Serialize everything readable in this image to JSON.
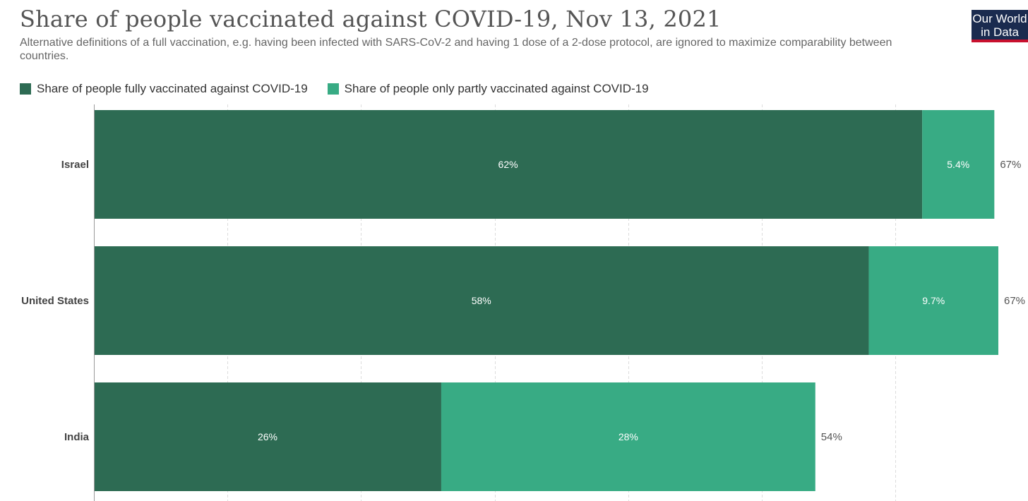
{
  "header": {
    "title": "Share of people vaccinated against COVID-19, Nov 13, 2021",
    "subtitle": "Alternative definitions of a full vaccination, e.g. having been infected with SARS-CoV-2 and having 1 dose of a 2-dose protocol, are ignored to maximize comparability between countries.",
    "logo_line1": "Our World",
    "logo_line2": "in Data"
  },
  "colors": {
    "fully": "#2d6b53",
    "partly": "#38ab84",
    "logo_bg": "#1a2b4f",
    "logo_accent": "#c8102e"
  },
  "chart_data": {
    "type": "bar",
    "orientation": "horizontal",
    "stacked": true,
    "title": "Share of people vaccinated against COVID-19, Nov 13, 2021",
    "categories": [
      "Israel",
      "United States",
      "India"
    ],
    "series": [
      {
        "name": "Share of people fully vaccinated against COVID-19",
        "values": [
          62,
          58,
          26
        ],
        "labels": [
          "62%",
          "58%",
          "26%"
        ]
      },
      {
        "name": "Share of people only partly vaccinated against COVID-19",
        "values": [
          5.4,
          9.7,
          28
        ],
        "labels": [
          "5.4%",
          "9.7%",
          "28%"
        ]
      }
    ],
    "totals": [
      "67%",
      "67%",
      "54%"
    ],
    "xlim": [
      0,
      67
    ],
    "grid": true,
    "legend": "top-left"
  }
}
